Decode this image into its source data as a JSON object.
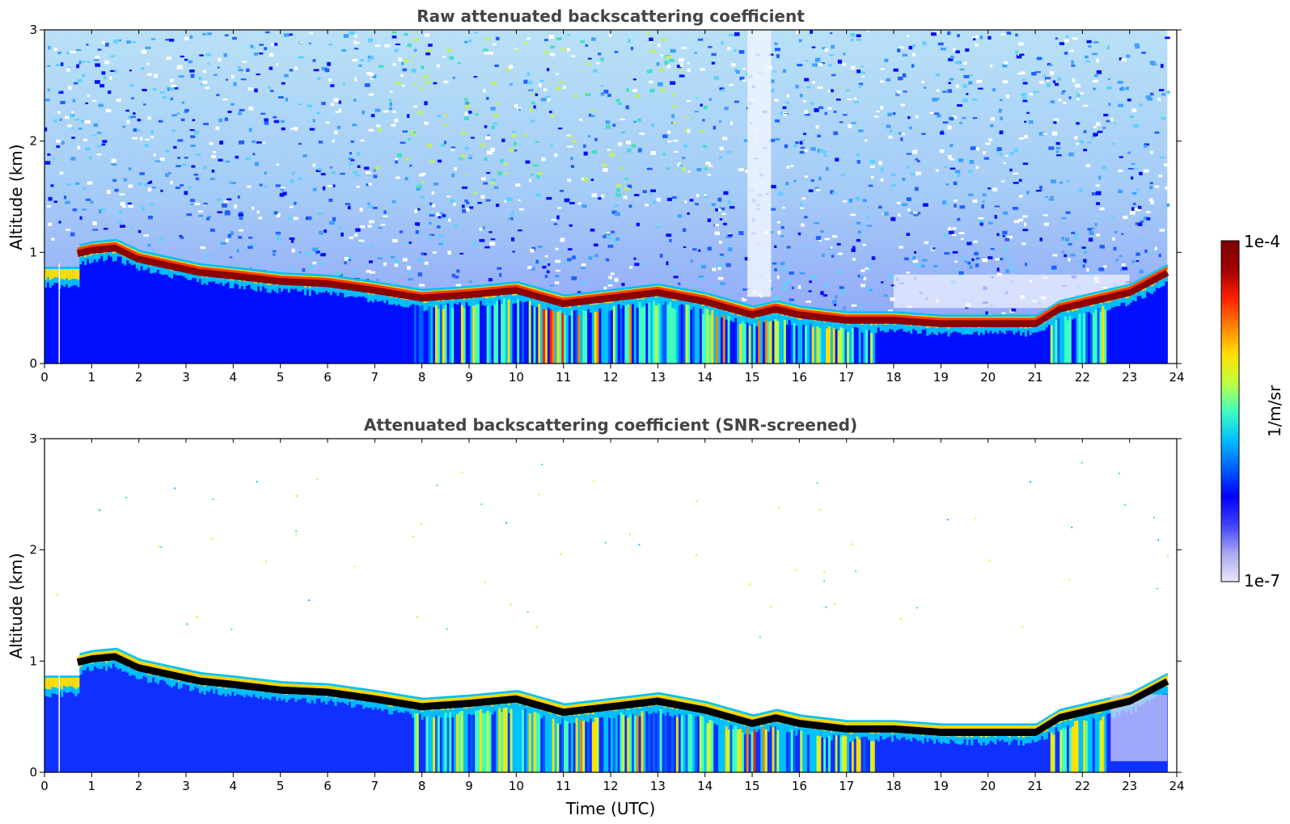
{
  "chart_data": [
    {
      "type": "heatmap",
      "title": "Raw attenuated backscattering coefficient",
      "xlabel": "",
      "ylabel": "Altitude (km)",
      "xlim": [
        0,
        24
      ],
      "ylim": [
        0,
        3
      ],
      "xticks": [
        0,
        1,
        2,
        3,
        4,
        5,
        6,
        7,
        8,
        9,
        10,
        11,
        12,
        13,
        14,
        15,
        16,
        17,
        18,
        19,
        20,
        21,
        22,
        23,
        24
      ],
      "yticks": [
        0,
        1,
        2,
        3
      ],
      "screened": false,
      "layer_top_km": {
        "time": [
          0.7,
          1.0,
          1.5,
          2.0,
          3.3,
          4.0,
          5.0,
          6.0,
          7.0,
          8.0,
          9.0,
          10.0,
          11.0,
          12.0,
          13.0,
          14.0,
          15.0,
          15.5,
          16.0,
          17.0,
          18.0,
          19.0,
          20.0,
          21.0,
          21.5,
          22.0,
          23.0,
          23.8
        ],
        "altitude": [
          1.05,
          1.08,
          1.1,
          1.0,
          0.88,
          0.85,
          0.8,
          0.78,
          0.72,
          0.65,
          0.68,
          0.72,
          0.6,
          0.65,
          0.7,
          0.62,
          0.5,
          0.55,
          0.5,
          0.45,
          0.45,
          0.42,
          0.42,
          0.42,
          0.55,
          0.6,
          0.7,
          0.88
        ]
      }
    },
    {
      "type": "heatmap",
      "title": "Attenuated backscattering coefficient (SNR-screened)",
      "xlabel": "Time (UTC)",
      "ylabel": "Altitude (km)",
      "xlim": [
        0,
        24
      ],
      "ylim": [
        0,
        3
      ],
      "xticks": [
        0,
        1,
        2,
        3,
        4,
        5,
        6,
        7,
        8,
        9,
        10,
        11,
        12,
        13,
        14,
        15,
        16,
        17,
        18,
        19,
        20,
        21,
        22,
        23,
        24
      ],
      "yticks": [
        0,
        1,
        2,
        3
      ],
      "screened": true,
      "layer_top_km": {
        "time": [
          0.7,
          1.0,
          1.5,
          2.0,
          3.3,
          4.0,
          5.0,
          6.0,
          7.0,
          8.0,
          9.0,
          10.0,
          11.0,
          12.0,
          13.0,
          14.0,
          15.0,
          15.5,
          16.0,
          17.0,
          18.0,
          19.0,
          20.0,
          21.0,
          21.5,
          22.0,
          23.0,
          23.8
        ],
        "altitude": [
          1.05,
          1.08,
          1.1,
          1.0,
          0.88,
          0.85,
          0.8,
          0.78,
          0.72,
          0.65,
          0.68,
          0.72,
          0.6,
          0.65,
          0.7,
          0.62,
          0.5,
          0.55,
          0.5,
          0.45,
          0.45,
          0.42,
          0.42,
          0.42,
          0.55,
          0.6,
          0.7,
          0.88
        ]
      }
    }
  ],
  "colorbar": {
    "label": "1/m/sr",
    "min_label": "1e-7",
    "max_label": "1e-4",
    "scale": "log",
    "colors": [
      "#e8e8f8",
      "#a8a8f0",
      "#4040ff",
      "#0000ff",
      "#0060ff",
      "#00c0ff",
      "#40ffc0",
      "#c0ff40",
      "#ffe000",
      "#ff8000",
      "#ff2000",
      "#a00000",
      "#800000"
    ]
  }
}
